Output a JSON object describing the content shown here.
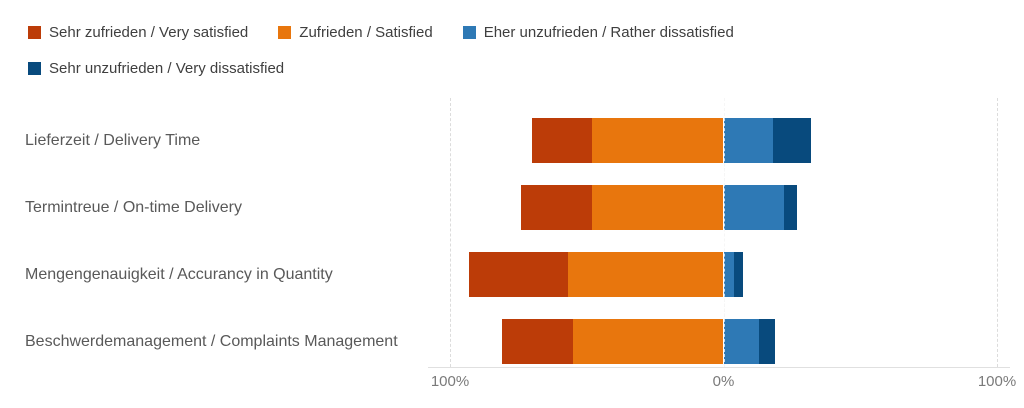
{
  "legend": {
    "items": [
      {
        "label": "Sehr zufrieden / Very satisfied",
        "color": "#BC3C08"
      },
      {
        "label": "Zufrieden / Satisfied",
        "color": "#E8760D"
      },
      {
        "label": "Eher unzufrieden / Rather dissatisfied",
        "color": "#2E79B5"
      },
      {
        "label": "Sehr unzufrieden / Very dissatisfied",
        "color": "#084A7D"
      }
    ]
  },
  "chart_data": {
    "type": "bar",
    "variant": "horizontal-diverging-stacked",
    "title": "",
    "categories": [
      "Lieferzeit / Delivery Time",
      "Termintreue / On-time Delivery",
      "Mengengenauigkeit / Accurancy in Quantity",
      "Beschwerdemanagement / Complaints Management"
    ],
    "series": [
      {
        "name": "Sehr zufrieden / Very satisfied",
        "color": "#BC3C08",
        "side": "left",
        "values": [
          22,
          26,
          36,
          26
        ]
      },
      {
        "name": "Zufrieden / Satisfied",
        "color": "#E8760D",
        "side": "left",
        "values": [
          48,
          48,
          57,
          55
        ]
      },
      {
        "name": "Eher unzufrieden / Rather dissatisfied",
        "color": "#2E79B5",
        "side": "right",
        "values": [
          18,
          22,
          4,
          13
        ]
      },
      {
        "name": "Sehr unzufrieden / Very dissatisfied",
        "color": "#084A7D",
        "side": "right",
        "values": [
          14,
          5,
          3,
          6
        ]
      }
    ],
    "x_axis": {
      "tick_labels": [
        "100%",
        "0%",
        "100%"
      ],
      "range_percent": [
        -100,
        100
      ],
      "grid": true
    },
    "legend_position": "top-left",
    "background": "#ffffff"
  }
}
